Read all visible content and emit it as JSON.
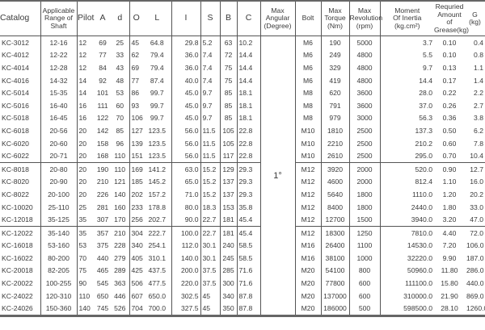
{
  "headers": {
    "catalog": "Catalog",
    "range": [
      "Applicable",
      "Range of",
      "Shaft"
    ],
    "pilot": "Pilot",
    "a": "A",
    "d": "d",
    "o": "O",
    "l": "L",
    "i": "I",
    "s": "S",
    "b": "B",
    "c": "C",
    "angular": [
      "Max",
      "Angular",
      "(Degree)"
    ],
    "bolt": "Bolt",
    "torque": [
      "Max",
      "Torque",
      "(Nm)"
    ],
    "revolution": [
      "Max",
      "Revolution",
      "(rpm)"
    ],
    "inertia": [
      "Moment",
      "Of Inertia",
      "(kg.cm²)"
    ],
    "grease": [
      "Requried",
      "Amount of",
      "Grease(kg)"
    ],
    "g": [
      "G",
      "(kg)"
    ]
  },
  "max_angular": "1°",
  "groups": [
    [
      [
        "KC-3012",
        "12-16",
        "12",
        "69",
        "25",
        "45",
        "64.8",
        "29.8",
        "5.2",
        "63",
        "10.2",
        "M6",
        "190",
        "5000",
        "3.7",
        "0.10",
        "0.4"
      ],
      [
        "KC-4012",
        "12-22",
        "12",
        "77",
        "33",
        "62",
        "79.4",
        "36.0",
        "7.4",
        "72",
        "14.4",
        "M6",
        "249",
        "4800",
        "5.5",
        "0.10",
        "0.8"
      ],
      [
        "KC-4014",
        "12-28",
        "12",
        "84",
        "43",
        "69",
        "79.4",
        "36.0",
        "7.4",
        "75",
        "14.4",
        "M6",
        "329",
        "4800",
        "9.7",
        "0.13",
        "1.1"
      ],
      [
        "KC-4016",
        "14-32",
        "14",
        "92",
        "48",
        "77",
        "87.4",
        "40.0",
        "7.4",
        "75",
        "14.4",
        "M6",
        "419",
        "4800",
        "14.4",
        "0.17",
        "1.4"
      ],
      [
        "KC-5014",
        "15-35",
        "14",
        "101",
        "53",
        "86",
        "99.7",
        "45.0",
        "9.7",
        "85",
        "18.1",
        "M8",
        "620",
        "3600",
        "28.0",
        "0.22",
        "2.2"
      ],
      [
        "KC-5016",
        "16-40",
        "16",
        "111",
        "60",
        "93",
        "99.7",
        "45.0",
        "9.7",
        "85",
        "18.1",
        "M8",
        "791",
        "3600",
        "37.0",
        "0.26",
        "2.7"
      ],
      [
        "KC-5018",
        "16-45",
        "16",
        "122",
        "70",
        "106",
        "99.7",
        "45.0",
        "9.7",
        "85",
        "18.1",
        "M8",
        "979",
        "3000",
        "56.3",
        "0.36",
        "3.8"
      ],
      [
        "KC-6018",
        "20-56",
        "20",
        "142",
        "85",
        "127",
        "123.5",
        "56.0",
        "11.5",
        "105",
        "22.8",
        "M10",
        "1810",
        "2500",
        "137.3",
        "0.50",
        "6.2"
      ],
      [
        "KC-6020",
        "20-60",
        "20",
        "158",
        "96",
        "139",
        "123.5",
        "56.0",
        "11.5",
        "105",
        "22.8",
        "M10",
        "2210",
        "2500",
        "210.2",
        "0.60",
        "7.8"
      ],
      [
        "KC-6022",
        "20-71",
        "20",
        "168",
        "110",
        "151",
        "123.5",
        "56.0",
        "11.5",
        "117",
        "22.8",
        "M10",
        "2610",
        "2500",
        "295.0",
        "0.70",
        "10.4"
      ]
    ],
    [
      [
        "KC-8018",
        "20-80",
        "20",
        "190",
        "110",
        "169",
        "141.2",
        "63.0",
        "15.2",
        "129",
        "29.3",
        "M12",
        "3920",
        "2000",
        "520.0",
        "0.90",
        "12.7"
      ],
      [
        "KC-8020",
        "20-90",
        "20",
        "210",
        "121",
        "185",
        "145.2",
        "65.0",
        "15.2",
        "137",
        "29.3",
        "M12",
        "4600",
        "2000",
        "812.4",
        "1.10",
        "16.0"
      ],
      [
        "KC-8022",
        "20-100",
        "20",
        "226",
        "140",
        "202",
        "157.2",
        "71.0",
        "15.2",
        "137",
        "29.3",
        "M12",
        "5640",
        "1800",
        "1110.0",
        "1.20",
        "20.2"
      ],
      [
        "KC-10020",
        "25-110",
        "25",
        "281",
        "160",
        "233",
        "178.8",
        "80.0",
        "18.3",
        "153",
        "35.8",
        "M12",
        "8400",
        "1800",
        "2440.0",
        "1.80",
        "33.0"
      ],
      [
        "KC-12018",
        "35-125",
        "35",
        "307",
        "170",
        "256",
        "202.7",
        "90.0",
        "22.7",
        "181",
        "45.4",
        "M12",
        "12700",
        "1500",
        "3940.0",
        "3.20",
        "47.0"
      ]
    ],
    [
      [
        "KC-12022",
        "35-140",
        "35",
        "357",
        "210",
        "304",
        "222.7",
        "100.0",
        "22.7",
        "181",
        "45.4",
        "M12",
        "18300",
        "1250",
        "7810.0",
        "4.40",
        "72.0"
      ],
      [
        "KC-16018",
        "53-160",
        "53",
        "375",
        "228",
        "340",
        "254.1",
        "112.0",
        "30.1",
        "240",
        "58.5",
        "M16",
        "26400",
        "1100",
        "14530.0",
        "7.20",
        "106.0"
      ],
      [
        "KC-16022",
        "80-200",
        "70",
        "440",
        "279",
        "405",
        "310.1",
        "140.0",
        "30.1",
        "245",
        "58.5",
        "M16",
        "38100",
        "1000",
        "32220.0",
        "9.90",
        "187.0"
      ],
      [
        "KC-20018",
        "82-205",
        "75",
        "465",
        "289",
        "425",
        "437.5",
        "200.0",
        "37.5",
        "285",
        "71.6",
        "M20",
        "54100",
        "800",
        "50960.0",
        "11.80",
        "286.0"
      ],
      [
        "KC-20022",
        "100-255",
        "90",
        "545",
        "363",
        "506",
        "477.5",
        "220.0",
        "37.5",
        "300",
        "71.6",
        "M20",
        "77800",
        "600",
        "111100.0",
        "15.80",
        "440.0"
      ],
      [
        "KC-24022",
        "120-310",
        "110",
        "650",
        "446",
        "607",
        "650.0",
        "302.5",
        "45",
        "340",
        "87.8",
        "M20",
        "137000",
        "600",
        "310000.0",
        "21.90",
        "869.0"
      ],
      [
        "KC-24026",
        "150-360",
        "140",
        "745",
        "526",
        "704",
        "700.0",
        "327.5",
        "45",
        "350",
        "87.8",
        "M20",
        "186000",
        "500",
        "598500.0",
        "28.10",
        "1260.0"
      ]
    ]
  ]
}
